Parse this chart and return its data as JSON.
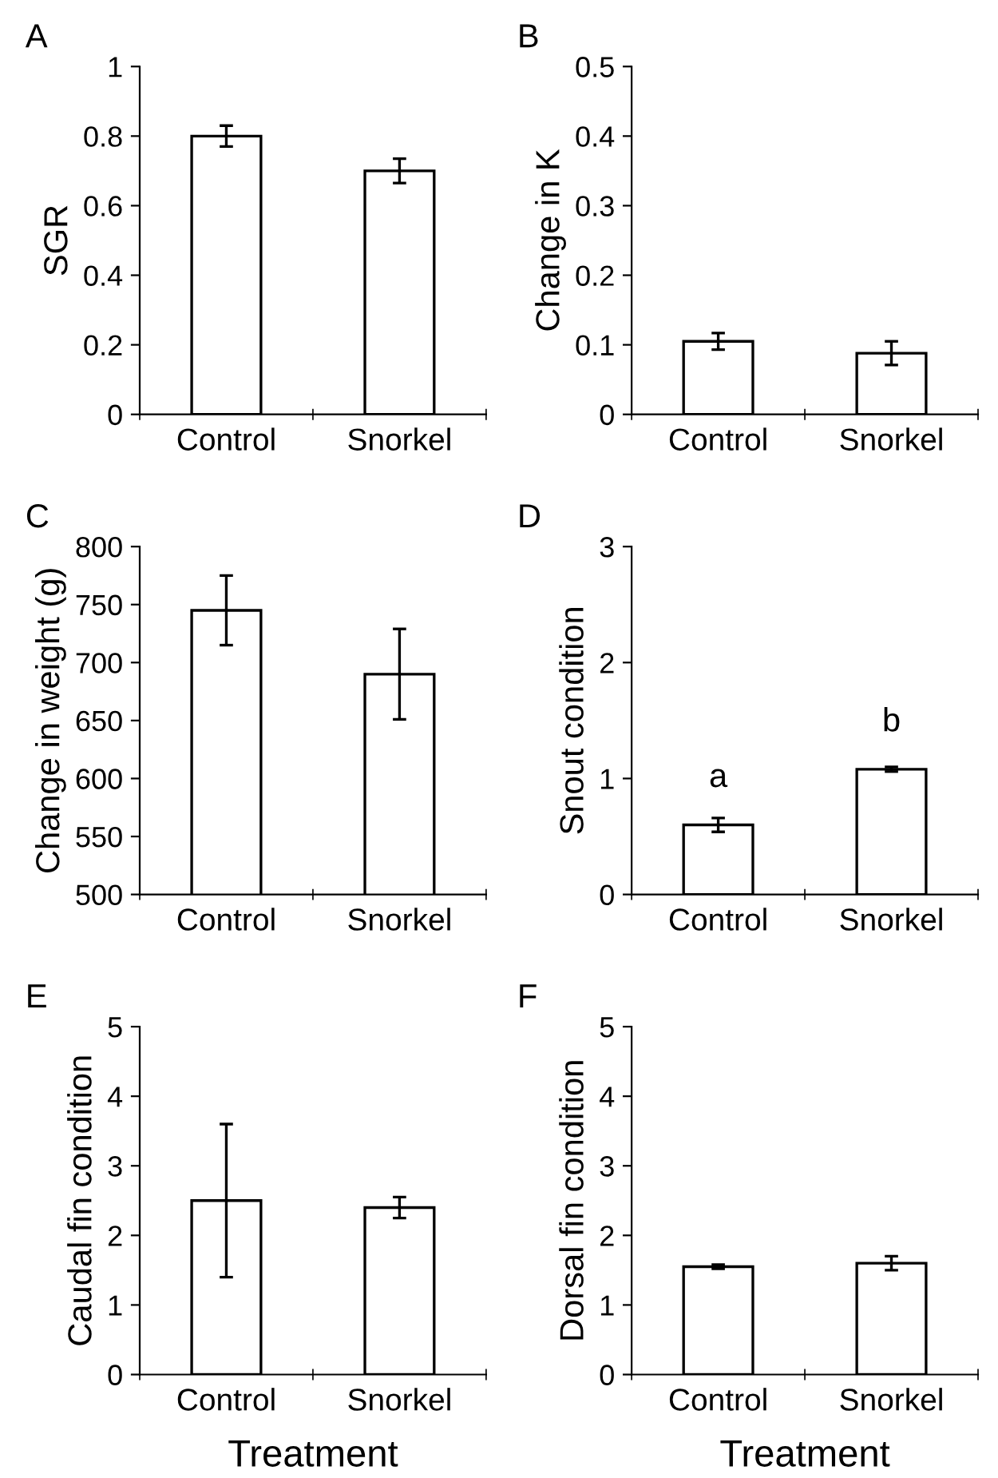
{
  "chart_data": [
    {
      "type": "bar",
      "title": "A",
      "ylabel": "SGR",
      "categories": [
        "Control",
        "Snorkel"
      ],
      "values": [
        0.8,
        0.7
      ],
      "errors": [
        0.03,
        0.035
      ],
      "color": "#ffffff",
      "ylim": [
        0,
        1
      ],
      "yticks": [
        0,
        0.2,
        0.4,
        0.6,
        0.8,
        1
      ]
    },
    {
      "type": "bar",
      "title": "B",
      "ylabel": "Change in K",
      "categories": [
        "Control",
        "Snorkel"
      ],
      "values": [
        0.105,
        0.088
      ],
      "errors": [
        0.012,
        0.017
      ],
      "color": "#ffffff",
      "ylim": [
        0,
        0.5
      ],
      "yticks": [
        0,
        0.1,
        0.2,
        0.3,
        0.4,
        0.5
      ]
    },
    {
      "type": "bar",
      "title": "C",
      "ylabel": "Change in weight (g)",
      "categories": [
        "Control",
        "Snorkel"
      ],
      "values": [
        745,
        690
      ],
      "errors": [
        30,
        39
      ],
      "color": "#ffffff",
      "ylim": [
        500,
        800
      ],
      "yticks": [
        500,
        550,
        600,
        650,
        700,
        750,
        800
      ]
    },
    {
      "type": "bar",
      "title": "D",
      "ylabel": "Snout condition",
      "categories": [
        "Control",
        "Snorkel"
      ],
      "values": [
        0.6,
        1.08
      ],
      "errors": [
        0.06,
        0.02
      ],
      "color": "#ffffff",
      "ylim": [
        0,
        3
      ],
      "yticks": [
        0,
        1,
        2,
        3
      ],
      "annotations": [
        {
          "text": "a",
          "x": "Control",
          "y": 0.6
        },
        {
          "text": "b",
          "x": "Snorkel",
          "y": 1.08
        }
      ]
    },
    {
      "type": "bar",
      "title": "E",
      "ylabel": "Caudal fin condition",
      "xlabel": "Treatment",
      "categories": [
        "Control",
        "Snorkel"
      ],
      "values": [
        2.5,
        2.4
      ],
      "errors": [
        [
          1.4,
          3.6
        ],
        0.15
      ],
      "color": "#ffffff",
      "ylim": [
        0,
        5
      ],
      "yticks": [
        0,
        1,
        2,
        3,
        4,
        5
      ]
    },
    {
      "type": "bar",
      "title": "F",
      "ylabel": "Dorsal fin condition",
      "xlabel": "Treatment",
      "categories": [
        "Control",
        "Snorkel"
      ],
      "values": [
        1.55,
        1.6
      ],
      "errors": [
        0.03,
        0.1
      ],
      "color": "#ffffff",
      "ylim": [
        0,
        5
      ],
      "yticks": [
        0,
        1,
        2,
        3,
        4,
        5
      ]
    }
  ]
}
